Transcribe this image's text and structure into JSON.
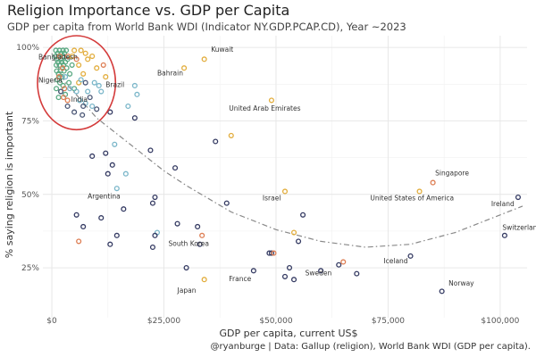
{
  "chart_data": {
    "type": "scatter",
    "title": "Religion Importance vs. GDP per Capita",
    "subtitle": "GDP per capita from World Bank WDI (Indicator NY.GDP.PCAP.CD), Year ~2023",
    "xlabel": "GDP per capita, current US$",
    "ylabel": "% saying religion is important",
    "xlim": [
      -2000,
      106000
    ],
    "ylim": [
      8,
      104
    ],
    "x_ticks": [
      0,
      25000,
      50000,
      75000,
      100000
    ],
    "x_tick_labels": [
      "$0",
      "$25,000",
      "$50,000",
      "$75,000",
      "$100,000"
    ],
    "y_ticks": [
      25,
      50,
      75,
      100
    ],
    "y_tick_labels": [
      "25%",
      "50%",
      "75%",
      "100%"
    ],
    "grid": true,
    "caption": "@ryanburge | Data: Gallup (religion), World Bank WDI (GDP per capita).",
    "colors": {
      "green": "#5aa982",
      "teal": "#7ab6c9",
      "yellow": "#e2ad3c",
      "orange": "#dd7d52",
      "navy": "#343a62",
      "slate": "#4a5675",
      "trend": "#888888",
      "highlight_circle": "#d43b3b"
    },
    "highlight_ellipse": {
      "cx": 5500,
      "cy": 88,
      "rx": 8700,
      "ry": 16
    },
    "trend_line": {
      "x": [
        0,
        3000,
        6000,
        10000,
        15000,
        20000,
        25000,
        30000,
        40000,
        50000,
        60000,
        70000,
        80000,
        90000,
        100000,
        105000
      ],
      "y": [
        98,
        88,
        83,
        76,
        70,
        64,
        58,
        53,
        44,
        38,
        34,
        32,
        33,
        37,
        43,
        46
      ]
    },
    "points": [
      {
        "x": 900,
        "y": 99,
        "c": "green"
      },
      {
        "x": 1300,
        "y": 98,
        "c": "green"
      },
      {
        "x": 1700,
        "y": 99,
        "c": "green"
      },
      {
        "x": 2100,
        "y": 98,
        "c": "green"
      },
      {
        "x": 2500,
        "y": 99,
        "c": "green"
      },
      {
        "x": 800,
        "y": 97,
        "c": "green"
      },
      {
        "x": 1200,
        "y": 96,
        "c": "green"
      },
      {
        "x": 1600,
        "y": 97,
        "c": "green"
      },
      {
        "x": 2000,
        "y": 96,
        "c": "green"
      },
      {
        "x": 2400,
        "y": 97,
        "c": "green"
      },
      {
        "x": 2800,
        "y": 98,
        "c": "green"
      },
      {
        "x": 3200,
        "y": 99,
        "c": "green"
      },
      {
        "x": 1000,
        "y": 94,
        "c": "green"
      },
      {
        "x": 1400,
        "y": 95,
        "c": "green"
      },
      {
        "x": 1800,
        "y": 94,
        "c": "green"
      },
      {
        "x": 2200,
        "y": 95,
        "c": "green"
      },
      {
        "x": 2600,
        "y": 94,
        "c": "green"
      },
      {
        "x": 3000,
        "y": 95,
        "c": "green"
      },
      {
        "x": 3500,
        "y": 96,
        "c": "green"
      },
      {
        "x": 1100,
        "y": 92,
        "c": "green"
      },
      {
        "x": 1500,
        "y": 91,
        "c": "green"
      },
      {
        "x": 1900,
        "y": 92,
        "c": "green"
      },
      {
        "x": 2300,
        "y": 90,
        "c": "green"
      },
      {
        "x": 2700,
        "y": 92,
        "c": "green"
      },
      {
        "x": 3300,
        "y": 93,
        "c": "green"
      },
      {
        "x": 1200,
        "y": 89,
        "c": "green"
      },
      {
        "x": 1800,
        "y": 88,
        "c": "green"
      },
      {
        "x": 2500,
        "y": 87,
        "c": "green"
      },
      {
        "x": 4000,
        "y": 91,
        "c": "green"
      },
      {
        "x": 4500,
        "y": 94,
        "c": "green"
      },
      {
        "x": 1000,
        "y": 86,
        "c": "green"
      },
      {
        "x": 2000,
        "y": 85,
        "c": "green"
      },
      {
        "x": 3000,
        "y": 84,
        "c": "green"
      },
      {
        "x": 5000,
        "y": 86,
        "c": "green"
      },
      {
        "x": 3800,
        "y": 88,
        "c": "green"
      },
      {
        "x": 1500,
        "y": 83,
        "c": "green"
      },
      {
        "x": 1800,
        "y": 97,
        "c": "orange"
      },
      {
        "x": 2400,
        "y": 93,
        "c": "orange"
      },
      {
        "x": 1600,
        "y": 90,
        "c": "orange"
      },
      {
        "x": 2800,
        "y": 86,
        "c": "orange"
      },
      {
        "x": 3600,
        "y": 97,
        "c": "orange"
      },
      {
        "x": 5500,
        "y": 96,
        "c": "orange"
      },
      {
        "x": 11500,
        "y": 94,
        "c": "orange"
      },
      {
        "x": 3500,
        "y": 82,
        "c": "orange"
      },
      {
        "x": 2600,
        "y": 83,
        "c": "orange"
      },
      {
        "x": 5000,
        "y": 99,
        "c": "yellow"
      },
      {
        "x": 4500,
        "y": 97,
        "c": "yellow"
      },
      {
        "x": 6500,
        "y": 99,
        "c": "yellow"
      },
      {
        "x": 7500,
        "y": 98,
        "c": "yellow"
      },
      {
        "x": 9000,
        "y": 97,
        "c": "yellow"
      },
      {
        "x": 6000,
        "y": 94,
        "c": "yellow"
      },
      {
        "x": 8000,
        "y": 96,
        "c": "yellow"
      },
      {
        "x": 10000,
        "y": 93,
        "c": "yellow"
      },
      {
        "x": 7000,
        "y": 91,
        "c": "yellow"
      },
      {
        "x": 12000,
        "y": 90,
        "c": "yellow"
      },
      {
        "x": 6000,
        "y": 88,
        "c": "yellow"
      },
      {
        "x": 3000,
        "y": 90,
        "c": "teal"
      },
      {
        "x": 4000,
        "y": 86,
        "c": "teal"
      },
      {
        "x": 5500,
        "y": 85,
        "c": "teal"
      },
      {
        "x": 6500,
        "y": 89,
        "c": "teal"
      },
      {
        "x": 8000,
        "y": 85,
        "c": "teal"
      },
      {
        "x": 9500,
        "y": 88,
        "c": "teal"
      },
      {
        "x": 10500,
        "y": 87,
        "c": "teal"
      },
      {
        "x": 11000,
        "y": 85,
        "c": "teal"
      },
      {
        "x": 6200,
        "y": 82,
        "c": "teal"
      },
      {
        "x": 7500,
        "y": 81,
        "c": "teal"
      },
      {
        "x": 9000,
        "y": 80,
        "c": "teal"
      },
      {
        "x": 18500,
        "y": 87,
        "c": "teal"
      },
      {
        "x": 19000,
        "y": 84,
        "c": "teal"
      },
      {
        "x": 17000,
        "y": 80,
        "c": "teal"
      },
      {
        "x": 14000,
        "y": 67,
        "c": "teal"
      },
      {
        "x": 16500,
        "y": 57,
        "c": "teal"
      },
      {
        "x": 14500,
        "y": 52,
        "c": "teal"
      },
      {
        "x": 23500,
        "y": 37,
        "c": "teal"
      },
      {
        "x": 2000,
        "y": 85,
        "c": "slate"
      },
      {
        "x": 3500,
        "y": 80,
        "c": "slate"
      },
      {
        "x": 5000,
        "y": 78,
        "c": "slate"
      },
      {
        "x": 7000,
        "y": 80,
        "c": "slate"
      },
      {
        "x": 6800,
        "y": 77,
        "c": "slate"
      },
      {
        "x": 8500,
        "y": 83,
        "c": "slate"
      },
      {
        "x": 10000,
        "y": 79,
        "c": "slate"
      },
      {
        "x": 7500,
        "y": 88,
        "c": "slate"
      },
      {
        "x": 13000,
        "y": 78,
        "c": "navy"
      },
      {
        "x": 18500,
        "y": 76,
        "c": "navy"
      },
      {
        "x": 36500,
        "y": 68,
        "c": "navy"
      },
      {
        "x": 22000,
        "y": 65,
        "c": "navy"
      },
      {
        "x": 12000,
        "y": 64,
        "c": "navy"
      },
      {
        "x": 9000,
        "y": 63,
        "c": "navy"
      },
      {
        "x": 13500,
        "y": 60,
        "c": "navy"
      },
      {
        "x": 27500,
        "y": 59,
        "c": "navy"
      },
      {
        "x": 12500,
        "y": 57,
        "c": "navy"
      },
      {
        "x": 23000,
        "y": 49,
        "c": "navy"
      },
      {
        "x": 22500,
        "y": 47,
        "c": "navy"
      },
      {
        "x": 39000,
        "y": 47,
        "c": "navy"
      },
      {
        "x": 16000,
        "y": 45,
        "c": "navy"
      },
      {
        "x": 5500,
        "y": 43,
        "c": "navy"
      },
      {
        "x": 11000,
        "y": 42,
        "c": "navy"
      },
      {
        "x": 7000,
        "y": 39,
        "c": "navy"
      },
      {
        "x": 28000,
        "y": 40,
        "c": "navy"
      },
      {
        "x": 32500,
        "y": 39,
        "c": "navy"
      },
      {
        "x": 23000,
        "y": 36,
        "c": "navy"
      },
      {
        "x": 14500,
        "y": 36,
        "c": "navy"
      },
      {
        "x": 56000,
        "y": 43,
        "c": "navy"
      },
      {
        "x": 55000,
        "y": 34,
        "c": "navy"
      },
      {
        "x": 33000,
        "y": 33,
        "c": "navy"
      },
      {
        "x": 22500,
        "y": 32,
        "c": "navy"
      },
      {
        "x": 13000,
        "y": 33,
        "c": "navy"
      },
      {
        "x": 48500,
        "y": 30,
        "c": "navy"
      },
      {
        "x": 49000,
        "y": 30,
        "c": "navy"
      },
      {
        "x": 64000,
        "y": 26,
        "c": "navy"
      },
      {
        "x": 60000,
        "y": 24,
        "c": "navy"
      },
      {
        "x": 53000,
        "y": 25,
        "c": "navy"
      },
      {
        "x": 54000,
        "y": 21,
        "c": "navy"
      },
      {
        "x": 52000,
        "y": 22,
        "c": "navy"
      },
      {
        "x": 45000,
        "y": 24,
        "c": "navy"
      },
      {
        "x": 68000,
        "y": 23,
        "c": "navy"
      },
      {
        "x": 80000,
        "y": 29,
        "c": "navy"
      },
      {
        "x": 87000,
        "y": 17,
        "c": "navy"
      },
      {
        "x": 104000,
        "y": 49,
        "c": "navy"
      },
      {
        "x": 101000,
        "y": 36,
        "c": "navy"
      },
      {
        "x": 30000,
        "y": 25,
        "c": "navy"
      },
      {
        "x": 34000,
        "y": 96,
        "c": "yellow"
      },
      {
        "x": 29500,
        "y": 93,
        "c": "yellow"
      },
      {
        "x": 49000,
        "y": 82,
        "c": "yellow"
      },
      {
        "x": 40000,
        "y": 70,
        "c": "yellow"
      },
      {
        "x": 52000,
        "y": 51,
        "c": "yellow"
      },
      {
        "x": 34000,
        "y": 21,
        "c": "yellow"
      },
      {
        "x": 82000,
        "y": 51,
        "c": "yellow"
      },
      {
        "x": 54000,
        "y": 37,
        "c": "yellow"
      },
      {
        "x": 85000,
        "y": 54,
        "c": "orange"
      },
      {
        "x": 33500,
        "y": 36,
        "c": "orange"
      },
      {
        "x": 65000,
        "y": 27,
        "c": "orange"
      },
      {
        "x": 6000,
        "y": 34,
        "c": "orange"
      },
      {
        "x": 49500,
        "y": 30,
        "c": "orange"
      }
    ],
    "annotations": [
      {
        "text": "Kuwait",
        "x": 35500,
        "y": 98.5,
        "anchor": "start"
      },
      {
        "text": "Bahrain",
        "x": 23500,
        "y": 90.5,
        "anchor": "start"
      },
      {
        "text": "United Arab Emirates",
        "x": 39500,
        "y": 78.5,
        "anchor": "start"
      },
      {
        "text": "Bangladesh",
        "x": -3000,
        "y": 96,
        "anchor": "start"
      },
      {
        "text": "Nigeria",
        "x": -3000,
        "y": 88,
        "anchor": "start"
      },
      {
        "text": "India",
        "x": 4300,
        "y": 81.5,
        "anchor": "start"
      },
      {
        "text": "Brazil",
        "x": 12000,
        "y": 86.5,
        "anchor": "start"
      },
      {
        "text": "Argentina",
        "x": 8000,
        "y": 48.5,
        "anchor": "start"
      },
      {
        "text": "Israel",
        "x": 47000,
        "y": 48,
        "anchor": "start"
      },
      {
        "text": "United States of America",
        "x": 71000,
        "y": 48,
        "anchor": "start"
      },
      {
        "text": "Singapore",
        "x": 85500,
        "y": 56.5,
        "anchor": "start"
      },
      {
        "text": "Ireland",
        "x": 98000,
        "y": 46,
        "anchor": "start"
      },
      {
        "text": "South Korea",
        "x": 26000,
        "y": 32.5,
        "anchor": "start"
      },
      {
        "text": "Switzerland",
        "x": 100500,
        "y": 38,
        "anchor": "start"
      },
      {
        "text": "Iceland",
        "x": 74000,
        "y": 26.5,
        "anchor": "start"
      },
      {
        "text": "Sweden",
        "x": 56500,
        "y": 22.5,
        "anchor": "start"
      },
      {
        "text": "France",
        "x": 39500,
        "y": 20.5,
        "anchor": "start"
      },
      {
        "text": "Japan",
        "x": 28000,
        "y": 16.5,
        "anchor": "start"
      },
      {
        "text": "Norway",
        "x": 88500,
        "y": 19,
        "anchor": "start"
      }
    ]
  }
}
